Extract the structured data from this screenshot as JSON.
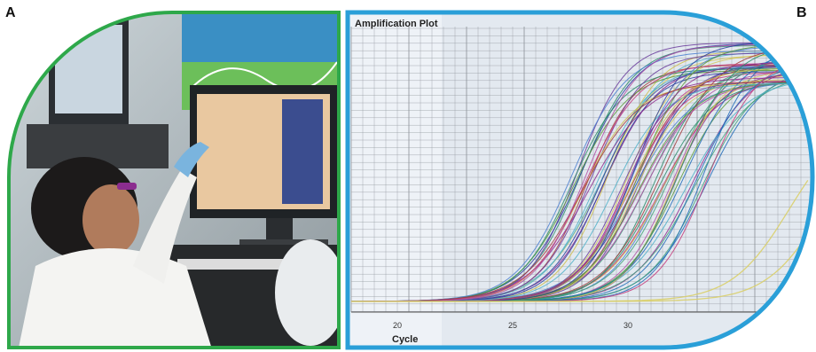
{
  "panels": {
    "a_label": "A",
    "b_label": "B"
  },
  "colors": {
    "photo_frame": "#2ea84a",
    "plot_frame": "#2a9fd8",
    "plot_background": "#eef2f7",
    "grid": "#8a8f96"
  },
  "plot": {
    "title": "Amplification Plot",
    "xlabel": "Cycle",
    "ticks": [
      "20",
      "25",
      "30"
    ]
  },
  "chart_data": {
    "type": "line",
    "title": "Amplification Plot",
    "xlabel": "Cycle",
    "ylabel": "",
    "x_ticks": [
      20,
      25,
      30
    ],
    "xlim": [
      18,
      38
    ],
    "curve_shape": "sigmoid",
    "series_count": 60,
    "threshold_cycle_range": [
      27,
      33
    ],
    "late_curves_threshold_cycles": [
      35,
      36.5
    ],
    "grid": true
  }
}
